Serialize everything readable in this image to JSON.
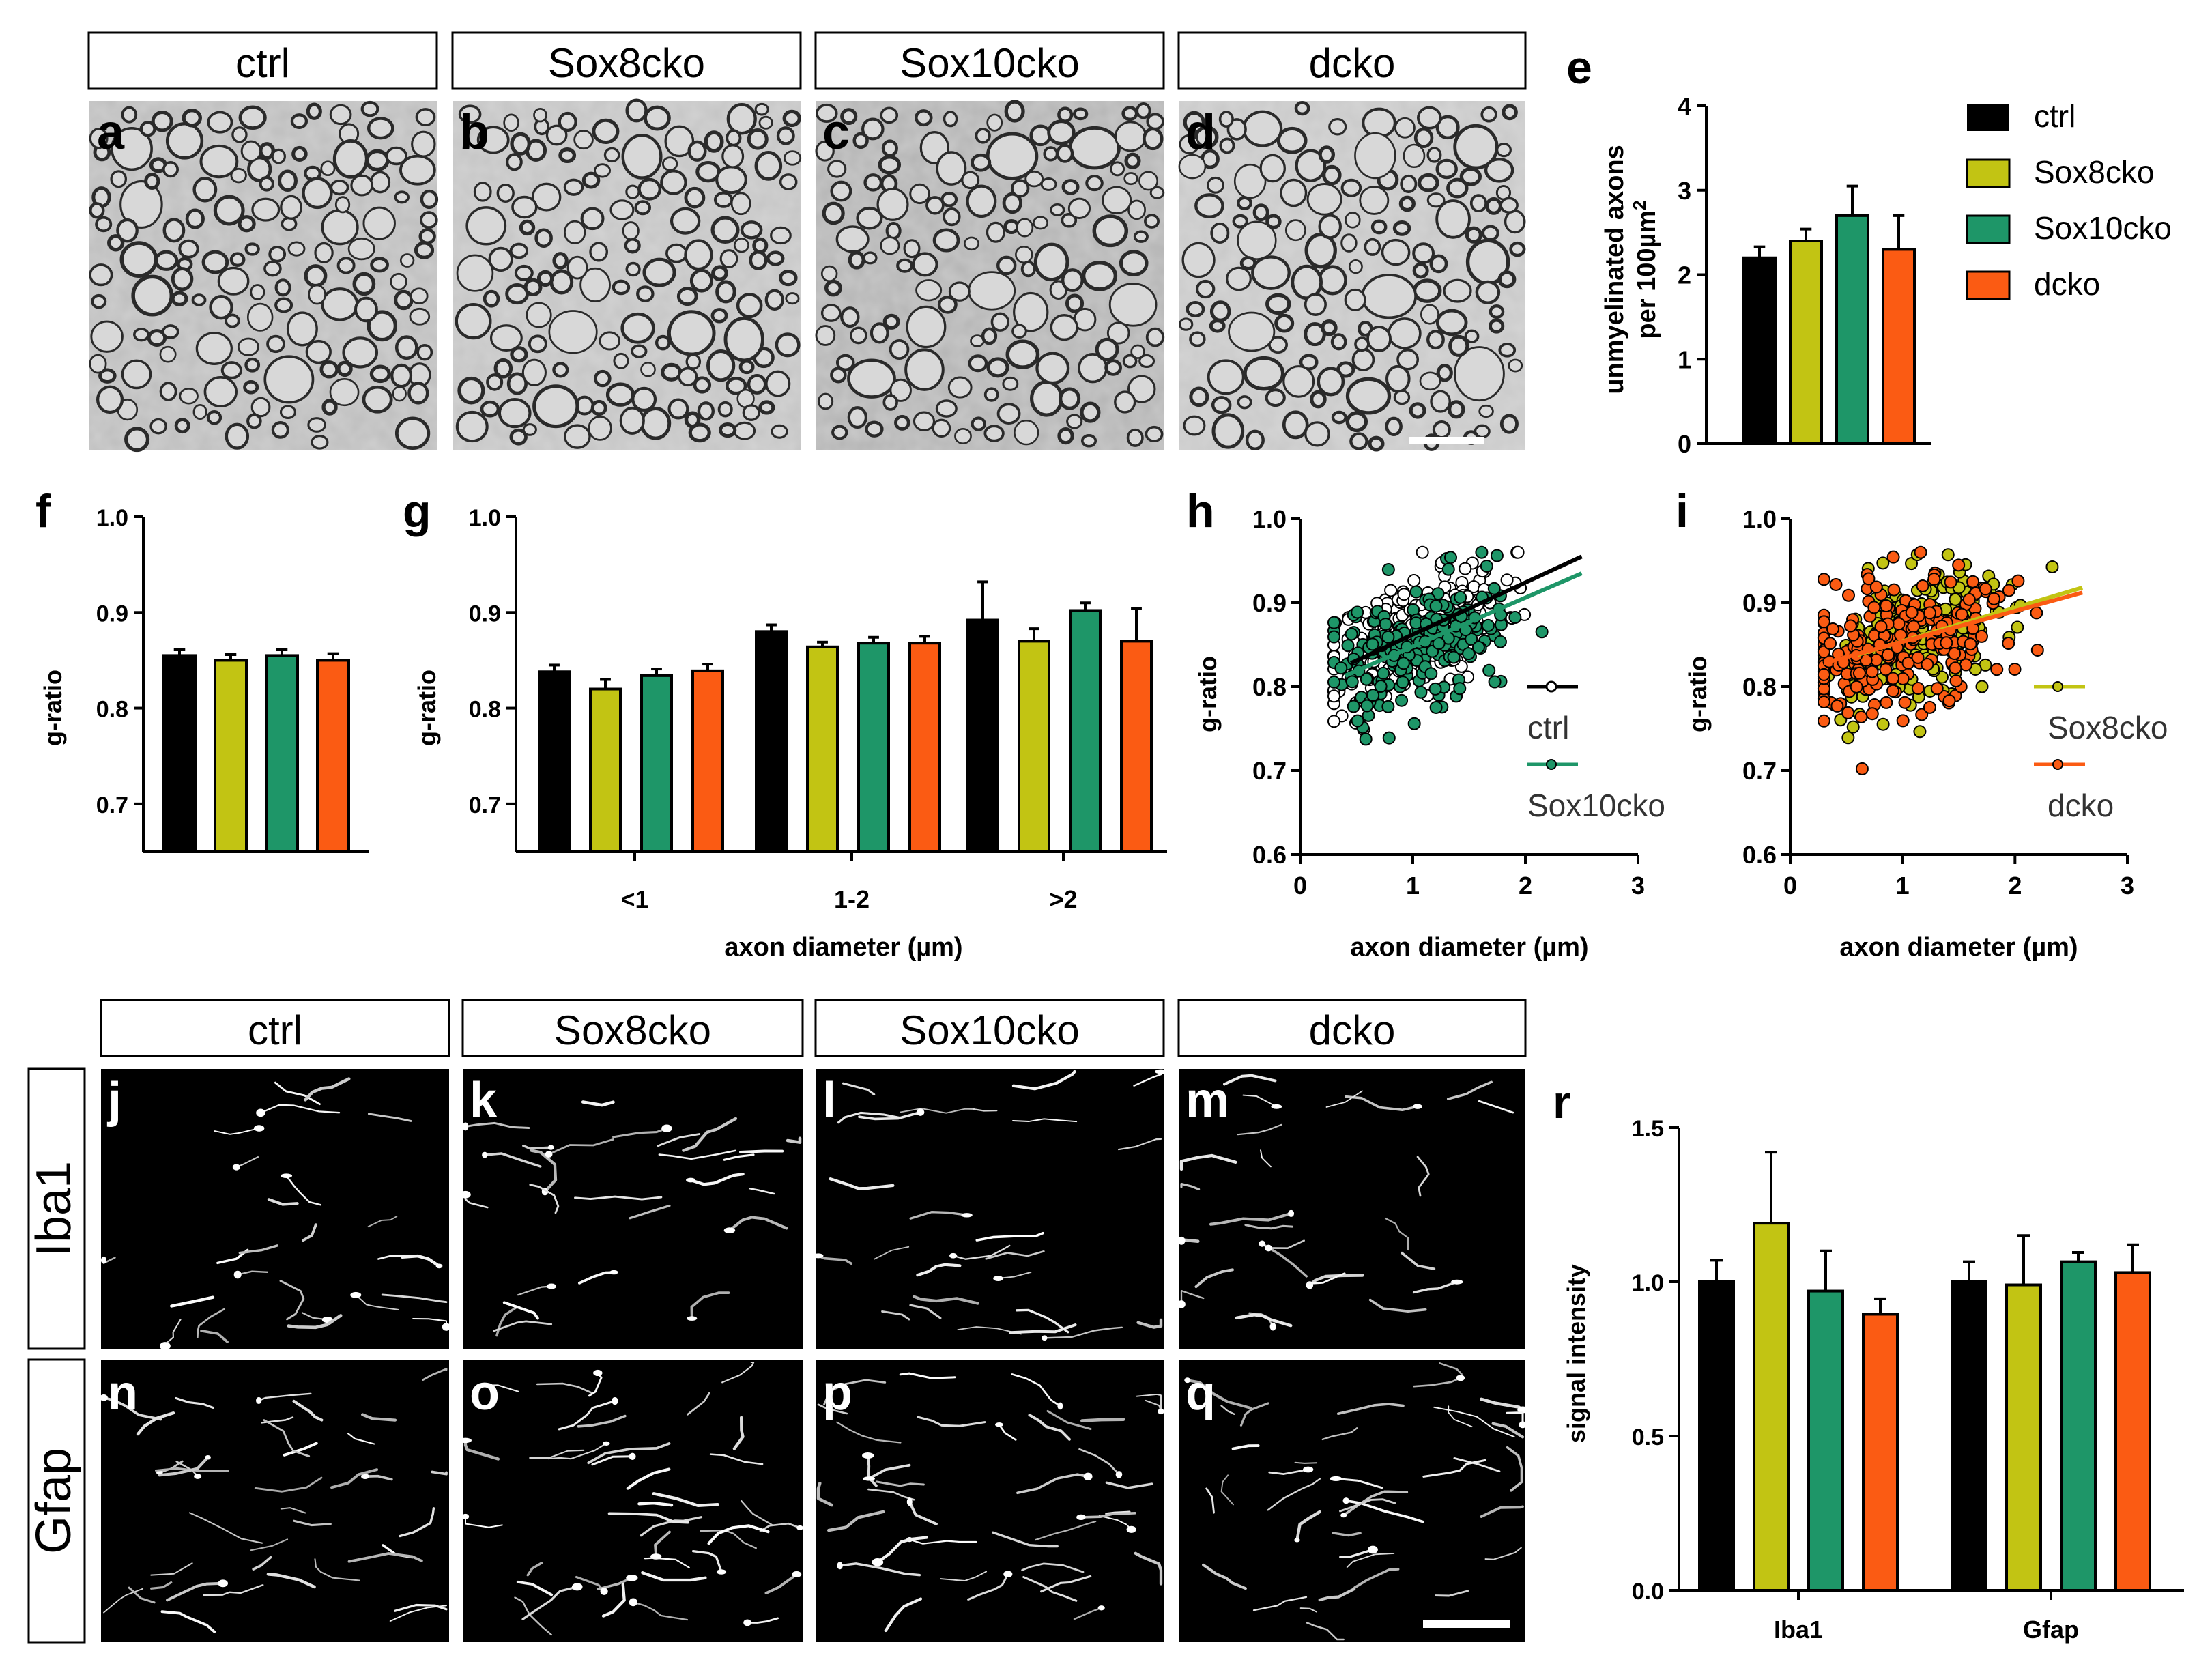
{
  "genotypes": [
    "ctrl",
    "Sox8cko",
    "Sox10cko",
    "dcko"
  ],
  "stains": [
    "Iba1",
    "Gfap"
  ],
  "panel_letters": {
    "em": [
      "a",
      "b",
      "c",
      "d"
    ],
    "e": "e",
    "f": "f",
    "g": "g",
    "h": "h",
    "i": "i",
    "r": "r",
    "iba1": [
      "j",
      "k",
      "l",
      "m"
    ],
    "gfap": [
      "n",
      "o",
      "p",
      "q"
    ]
  },
  "colors": {
    "ctrl": "#000000",
    "Sox8cko": "#c2c413",
    "Sox10cko": "#1e9668",
    "dcko": "#fb5b13"
  },
  "chart_data": [
    {
      "panel": "e",
      "type": "bar",
      "ylabel_line1": "unmyelinated axons",
      "ylabel_line2": "per 100µm",
      "ylabel_sup": "2",
      "ylim": [
        0,
        4
      ],
      "yticks": [
        "0",
        "1",
        "2",
        "3",
        "4"
      ],
      "categories": [
        "ctrl",
        "Sox8cko",
        "Sox10cko",
        "dcko"
      ],
      "values": [
        2.2,
        2.4,
        2.7,
        2.3
      ],
      "errors": [
        0.13,
        0.14,
        0.35,
        0.4
      ],
      "legend": [
        "ctrl",
        "Sox8cko",
        "Sox10cko",
        "dcko"
      ]
    },
    {
      "panel": "f",
      "type": "bar",
      "ylabel": "g-ratio",
      "ylim": [
        0.65,
        1.0
      ],
      "yticks": [
        "0.7",
        "0.8",
        "0.9",
        "1.0"
      ],
      "categories": [
        "ctrl",
        "Sox8cko",
        "Sox10cko",
        "dcko"
      ],
      "values": [
        0.855,
        0.85,
        0.855,
        0.85
      ],
      "errors": [
        0.006,
        0.006,
        0.006,
        0.007
      ]
    },
    {
      "panel": "g",
      "type": "bar",
      "ylabel": "g-ratio",
      "xlabel": "axon diameter (µm)",
      "ylim": [
        0.65,
        1.0
      ],
      "yticks": [
        "0.7",
        "0.8",
        "0.9",
        "1.0"
      ],
      "categories": [
        "<1",
        "1-2",
        ">2"
      ],
      "series": [
        {
          "name": "ctrl",
          "values": [
            0.838,
            0.88,
            0.892
          ],
          "errors": [
            0.007,
            0.007,
            0.04
          ]
        },
        {
          "name": "Sox8cko",
          "values": [
            0.82,
            0.864,
            0.87
          ],
          "errors": [
            0.01,
            0.005,
            0.013
          ]
        },
        {
          "name": "Sox10cko",
          "values": [
            0.834,
            0.868,
            0.902
          ],
          "errors": [
            0.007,
            0.006,
            0.008
          ]
        },
        {
          "name": "dcko",
          "values": [
            0.839,
            0.868,
            0.87
          ],
          "errors": [
            0.007,
            0.007,
            0.034
          ]
        }
      ]
    },
    {
      "panel": "h",
      "type": "scatter",
      "ylabel": "g-ratio",
      "xlabel": "axon diameter (µm)",
      "xlim": [
        0,
        3
      ],
      "ylim": [
        0.6,
        1.0
      ],
      "xticks": [
        "0",
        "1",
        "2",
        "3"
      ],
      "yticks": [
        "0.6",
        "0.7",
        "0.8",
        "0.9",
        "1.0"
      ],
      "series": [
        {
          "name": "ctrl",
          "n": 230,
          "xmean": 1.0,
          "xsd": 0.4,
          "fit": [
            [
              0.45,
              0.828
            ],
            [
              2.5,
              0.955
            ]
          ],
          "sd": 0.035
        },
        {
          "name": "Sox10cko",
          "n": 230,
          "xmean": 1.0,
          "xsd": 0.4,
          "fit": [
            [
              0.4,
              0.813
            ],
            [
              2.5,
              0.935
            ]
          ],
          "sd": 0.037
        }
      ],
      "legend": [
        "ctrl",
        "Sox10cko"
      ]
    },
    {
      "panel": "i",
      "type": "scatter",
      "ylabel": "g-ratio",
      "xlabel": "axon diameter (µm)",
      "xlim": [
        0,
        3
      ],
      "ylim": [
        0.6,
        1.0
      ],
      "xticks": [
        "0",
        "1",
        "2",
        "3"
      ],
      "yticks": [
        "0.6",
        "0.7",
        "0.8",
        "0.9",
        "1.0"
      ],
      "series": [
        {
          "name": "Sox8cko",
          "n": 230,
          "xmean": 1.1,
          "xsd": 0.45,
          "fit": [
            [
              0.6,
              0.838
            ],
            [
              2.6,
              0.918
            ]
          ],
          "sd": 0.04
        },
        {
          "name": "dcko",
          "n": 230,
          "xmean": 1.0,
          "xsd": 0.45,
          "fit": [
            [
              0.3,
              0.828
            ],
            [
              2.6,
              0.912
            ]
          ],
          "sd": 0.045
        }
      ],
      "legend": [
        "Sox8cko",
        "dcko"
      ]
    },
    {
      "panel": "r",
      "type": "bar",
      "ylabel": "signal intensity",
      "ylim": [
        0,
        1.5
      ],
      "yticks": [
        "0.0",
        "0.5",
        "1.0",
        "1.5"
      ],
      "categories": [
        "Iba1",
        "Gfap"
      ],
      "series": [
        {
          "name": "ctrl",
          "values": [
            1.0,
            1.0
          ],
          "errors": [
            0.07,
            0.065
          ]
        },
        {
          "name": "Sox8cko",
          "values": [
            1.19,
            0.99
          ],
          "errors": [
            0.23,
            0.16
          ]
        },
        {
          "name": "Sox10cko",
          "values": [
            0.97,
            1.065
          ],
          "errors": [
            0.13,
            0.03
          ]
        },
        {
          "name": "dcko",
          "values": [
            0.895,
            1.03
          ],
          "errors": [
            0.05,
            0.09
          ]
        }
      ]
    }
  ]
}
